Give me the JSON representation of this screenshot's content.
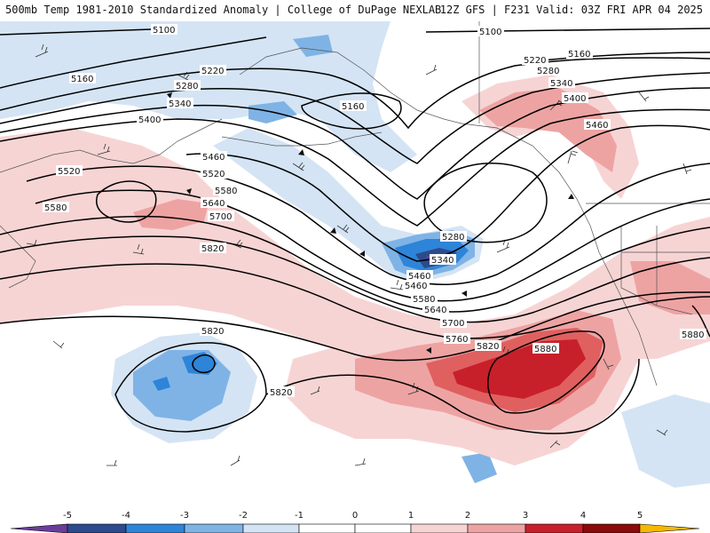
{
  "header": {
    "title_left": "500mb Temp 1981-2010 Standardized Anomaly | College of DuPage NEXLAB",
    "title_right": "12Z GFS | F231 Valid: 03Z FRI APR 04 2025"
  },
  "colors": {
    "anom_m5": "#6a3d9a",
    "anom_m4": "#2c4b8c",
    "anom_m3": "#2e84d8",
    "anom_m2": "#7fb3e6",
    "anom_m1": "#d4e4f4",
    "anom_p1": "#f7d4d4",
    "anom_p2": "#eea3a3",
    "anom_p3": "#e06060",
    "anom_p4": "#c8202a",
    "anom_p5": "#8b0a0a",
    "contour": "#000000",
    "coast": "#555555"
  },
  "contour_labels": [
    {
      "id": "5100a",
      "text": "5100"
    },
    {
      "id": "5100b",
      "text": "5100"
    },
    {
      "id": "5160a",
      "text": "5160"
    },
    {
      "id": "5160b",
      "text": "5160"
    },
    {
      "id": "5160c",
      "text": "5160"
    },
    {
      "id": "5220a",
      "text": "5220"
    },
    {
      "id": "5220b",
      "text": "5220"
    },
    {
      "id": "5280a",
      "text": "5280"
    },
    {
      "id": "5280b",
      "text": "5280"
    },
    {
      "id": "5280c",
      "text": "5280"
    },
    {
      "id": "5340a",
      "text": "5340"
    },
    {
      "id": "5340b",
      "text": "5340"
    },
    {
      "id": "5340c",
      "text": "5340"
    },
    {
      "id": "5400a",
      "text": "5400"
    },
    {
      "id": "5400b",
      "text": "5400"
    },
    {
      "id": "5460a",
      "text": "5460"
    },
    {
      "id": "5460b",
      "text": "5460"
    },
    {
      "id": "5460c",
      "text": "5460"
    },
    {
      "id": "5460d",
      "text": "5460"
    },
    {
      "id": "5520a",
      "text": "5520"
    },
    {
      "id": "5520b",
      "text": "5520"
    },
    {
      "id": "5580a",
      "text": "5580"
    },
    {
      "id": "5580b",
      "text": "5580"
    },
    {
      "id": "5580c",
      "text": "5580"
    },
    {
      "id": "5640a",
      "text": "5640"
    },
    {
      "id": "5640b",
      "text": "5640"
    },
    {
      "id": "5700a",
      "text": "5700"
    },
    {
      "id": "5700b",
      "text": "5700"
    },
    {
      "id": "5760a",
      "text": "5760"
    },
    {
      "id": "5820a",
      "text": "5820"
    },
    {
      "id": "5820b",
      "text": "5820"
    },
    {
      "id": "5820c",
      "text": "5820"
    },
    {
      "id": "5820d",
      "text": "5820"
    },
    {
      "id": "5880a",
      "text": "5880"
    },
    {
      "id": "5880b",
      "text": "5880"
    }
  ],
  "legend": {
    "ticks": [
      "-5",
      "-4",
      "-3",
      "-2",
      "-1",
      "0",
      "1",
      "2",
      "3",
      "4",
      "5"
    ]
  }
}
